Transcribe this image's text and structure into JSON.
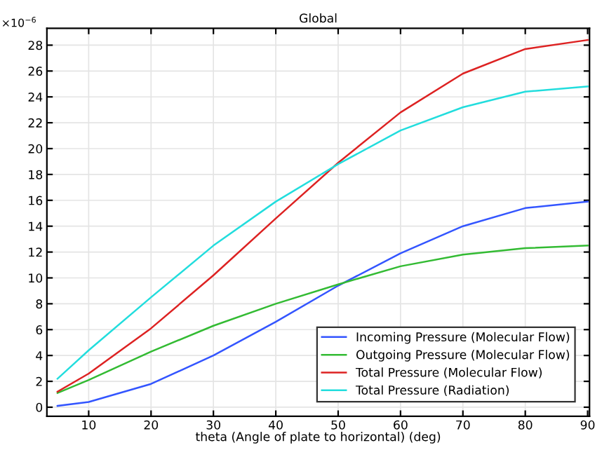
{
  "chart_data": {
    "type": "line",
    "title": "Global",
    "xlabel": "theta (Angle of plate to horizontal) (deg)",
    "annotations": [
      "×10$^{−6}$"
    ],
    "x": [
      5,
      10,
      20,
      30,
      40,
      50,
      60,
      70,
      80,
      90
    ],
    "series": [
      {
        "name": "Incoming Pressure (Molecular Flow)",
        "color": "#3355ff",
        "values": [
          0.1,
          0.4,
          1.8,
          4.0,
          6.6,
          9.4,
          11.9,
          14.0,
          15.4,
          15.9
        ]
      },
      {
        "name": "Outgoing Pressure (Molecular Flow)",
        "color": "#33bb33",
        "values": [
          1.1,
          2.1,
          4.3,
          6.3,
          8.0,
          9.5,
          10.9,
          11.8,
          12.3,
          12.5
        ]
      },
      {
        "name": "Total Pressure (Molecular Flow)",
        "color": "#dd2222",
        "values": [
          1.2,
          2.6,
          6.1,
          10.2,
          14.6,
          18.9,
          22.8,
          25.8,
          27.7,
          28.4
        ]
      },
      {
        "name": "Total Pressure (Radiation)",
        "color": "#22dddd",
        "values": [
          2.2,
          4.4,
          8.5,
          12.5,
          15.9,
          18.8,
          21.4,
          23.2,
          24.4,
          24.8
        ]
      }
    ],
    "xlim": [
      3.3,
      90.3
    ],
    "ylim": [
      -0.7,
      29.3
    ],
    "xticks": [
      10,
      20,
      30,
      40,
      50,
      60,
      70,
      80,
      90
    ],
    "yticks": [
      0,
      2,
      4,
      6,
      8,
      10,
      12,
      14,
      16,
      18,
      20,
      22,
      24,
      26,
      28
    ],
    "grid": true,
    "legend": "bottom right",
    "marker": "none",
    "line_style": "solid"
  }
}
